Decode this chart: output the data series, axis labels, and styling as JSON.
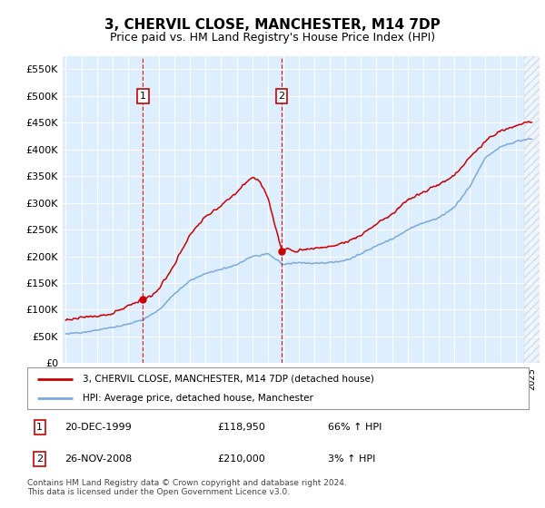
{
  "title": "3, CHERVIL CLOSE, MANCHESTER, M14 7DP",
  "subtitle": "Price paid vs. HM Land Registry's House Price Index (HPI)",
  "title_fontsize": 11,
  "subtitle_fontsize": 9,
  "yticks": [
    0,
    50000,
    100000,
    150000,
    200000,
    250000,
    300000,
    350000,
    400000,
    450000,
    500000,
    550000
  ],
  "ylim": [
    0,
    575000
  ],
  "xlim_start": 1994.8,
  "xlim_end": 2025.5,
  "background_color": "#ffffff",
  "plot_bg_color": "#ddeeff",
  "grid_color": "#ffffff",
  "hpi_line_color": "#7aaadd",
  "price_line_color": "#cc0000",
  "purchase1_x": 1999.97,
  "purchase1_y": 118950,
  "purchase2_x": 2008.9,
  "purchase2_y": 210000,
  "legend_line1": "3, CHERVIL CLOSE, MANCHESTER, M14 7DP (detached house)",
  "legend_line2": "HPI: Average price, detached house, Manchester",
  "purchase1_date": "20-DEC-1999",
  "purchase1_price": "£118,950",
  "purchase1_hpi": "66% ↑ HPI",
  "purchase2_date": "26-NOV-2008",
  "purchase2_price": "£210,000",
  "purchase2_hpi": "3% ↑ HPI",
  "footer": "Contains HM Land Registry data © Crown copyright and database right 2024.\nThis data is licensed under the Open Government Licence v3.0.",
  "hatch_x_start": 2024.5
}
